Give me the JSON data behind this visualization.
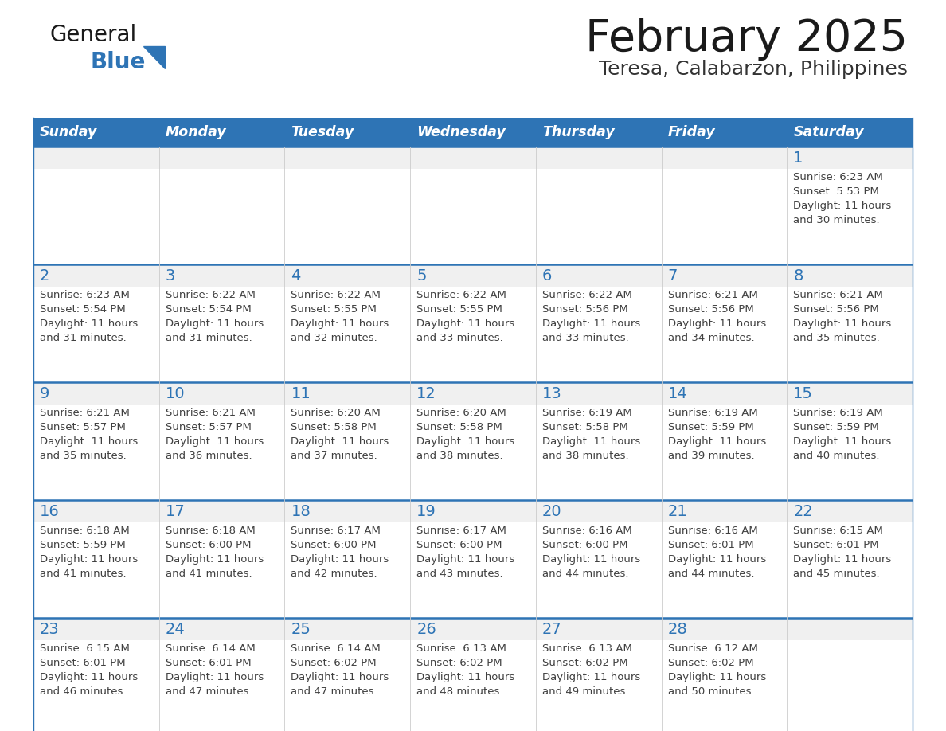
{
  "title": "February 2025",
  "subtitle": "Teresa, Calabarzon, Philippines",
  "days_of_week": [
    "Sunday",
    "Monday",
    "Tuesday",
    "Wednesday",
    "Thursday",
    "Friday",
    "Saturday"
  ],
  "header_bg": "#2E74B5",
  "header_text": "#FFFFFF",
  "cell_bg_white": "#FFFFFF",
  "cell_bg_gray": "#F0F0F0",
  "row_line_color": "#2E74B5",
  "text_color": "#404040",
  "day_number_color": "#2E74B5",
  "calendar_data": [
    [
      null,
      null,
      null,
      null,
      null,
      null,
      {
        "day": 1,
        "sunrise": "6:23 AM",
        "sunset": "5:53 PM",
        "daylight": "11 hours",
        "daylight2": "and 30 minutes."
      }
    ],
    [
      {
        "day": 2,
        "sunrise": "6:23 AM",
        "sunset": "5:54 PM",
        "daylight": "11 hours",
        "daylight2": "and 31 minutes."
      },
      {
        "day": 3,
        "sunrise": "6:22 AM",
        "sunset": "5:54 PM",
        "daylight": "11 hours",
        "daylight2": "and 31 minutes."
      },
      {
        "day": 4,
        "sunrise": "6:22 AM",
        "sunset": "5:55 PM",
        "daylight": "11 hours",
        "daylight2": "and 32 minutes."
      },
      {
        "day": 5,
        "sunrise": "6:22 AM",
        "sunset": "5:55 PM",
        "daylight": "11 hours",
        "daylight2": "and 33 minutes."
      },
      {
        "day": 6,
        "sunrise": "6:22 AM",
        "sunset": "5:56 PM",
        "daylight": "11 hours",
        "daylight2": "and 33 minutes."
      },
      {
        "day": 7,
        "sunrise": "6:21 AM",
        "sunset": "5:56 PM",
        "daylight": "11 hours",
        "daylight2": "and 34 minutes."
      },
      {
        "day": 8,
        "sunrise": "6:21 AM",
        "sunset": "5:56 PM",
        "daylight": "11 hours",
        "daylight2": "and 35 minutes."
      }
    ],
    [
      {
        "day": 9,
        "sunrise": "6:21 AM",
        "sunset": "5:57 PM",
        "daylight": "11 hours",
        "daylight2": "and 35 minutes."
      },
      {
        "day": 10,
        "sunrise": "6:21 AM",
        "sunset": "5:57 PM",
        "daylight": "11 hours",
        "daylight2": "and 36 minutes."
      },
      {
        "day": 11,
        "sunrise": "6:20 AM",
        "sunset": "5:58 PM",
        "daylight": "11 hours",
        "daylight2": "and 37 minutes."
      },
      {
        "day": 12,
        "sunrise": "6:20 AM",
        "sunset": "5:58 PM",
        "daylight": "11 hours",
        "daylight2": "and 38 minutes."
      },
      {
        "day": 13,
        "sunrise": "6:19 AM",
        "sunset": "5:58 PM",
        "daylight": "11 hours",
        "daylight2": "and 38 minutes."
      },
      {
        "day": 14,
        "sunrise": "6:19 AM",
        "sunset": "5:59 PM",
        "daylight": "11 hours",
        "daylight2": "and 39 minutes."
      },
      {
        "day": 15,
        "sunrise": "6:19 AM",
        "sunset": "5:59 PM",
        "daylight": "11 hours",
        "daylight2": "and 40 minutes."
      }
    ],
    [
      {
        "day": 16,
        "sunrise": "6:18 AM",
        "sunset": "5:59 PM",
        "daylight": "11 hours",
        "daylight2": "and 41 minutes."
      },
      {
        "day": 17,
        "sunrise": "6:18 AM",
        "sunset": "6:00 PM",
        "daylight": "11 hours",
        "daylight2": "and 41 minutes."
      },
      {
        "day": 18,
        "sunrise": "6:17 AM",
        "sunset": "6:00 PM",
        "daylight": "11 hours",
        "daylight2": "and 42 minutes."
      },
      {
        "day": 19,
        "sunrise": "6:17 AM",
        "sunset": "6:00 PM",
        "daylight": "11 hours",
        "daylight2": "and 43 minutes."
      },
      {
        "day": 20,
        "sunrise": "6:16 AM",
        "sunset": "6:00 PM",
        "daylight": "11 hours",
        "daylight2": "and 44 minutes."
      },
      {
        "day": 21,
        "sunrise": "6:16 AM",
        "sunset": "6:01 PM",
        "daylight": "11 hours",
        "daylight2": "and 44 minutes."
      },
      {
        "day": 22,
        "sunrise": "6:15 AM",
        "sunset": "6:01 PM",
        "daylight": "11 hours",
        "daylight2": "and 45 minutes."
      }
    ],
    [
      {
        "day": 23,
        "sunrise": "6:15 AM",
        "sunset": "6:01 PM",
        "daylight": "11 hours",
        "daylight2": "and 46 minutes."
      },
      {
        "day": 24,
        "sunrise": "6:14 AM",
        "sunset": "6:01 PM",
        "daylight": "11 hours",
        "daylight2": "and 47 minutes."
      },
      {
        "day": 25,
        "sunrise": "6:14 AM",
        "sunset": "6:02 PM",
        "daylight": "11 hours",
        "daylight2": "and 47 minutes."
      },
      {
        "day": 26,
        "sunrise": "6:13 AM",
        "sunset": "6:02 PM",
        "daylight": "11 hours",
        "daylight2": "and 48 minutes."
      },
      {
        "day": 27,
        "sunrise": "6:13 AM",
        "sunset": "6:02 PM",
        "daylight": "11 hours",
        "daylight2": "and 49 minutes."
      },
      {
        "day": 28,
        "sunrise": "6:12 AM",
        "sunset": "6:02 PM",
        "daylight": "11 hours",
        "daylight2": "and 50 minutes."
      },
      null
    ]
  ],
  "logo_text1": "General",
  "logo_text2": "Blue",
  "logo_color1": "#1a1a1a",
  "logo_color2": "#2E74B5",
  "logo_triangle_color": "#2E74B5"
}
